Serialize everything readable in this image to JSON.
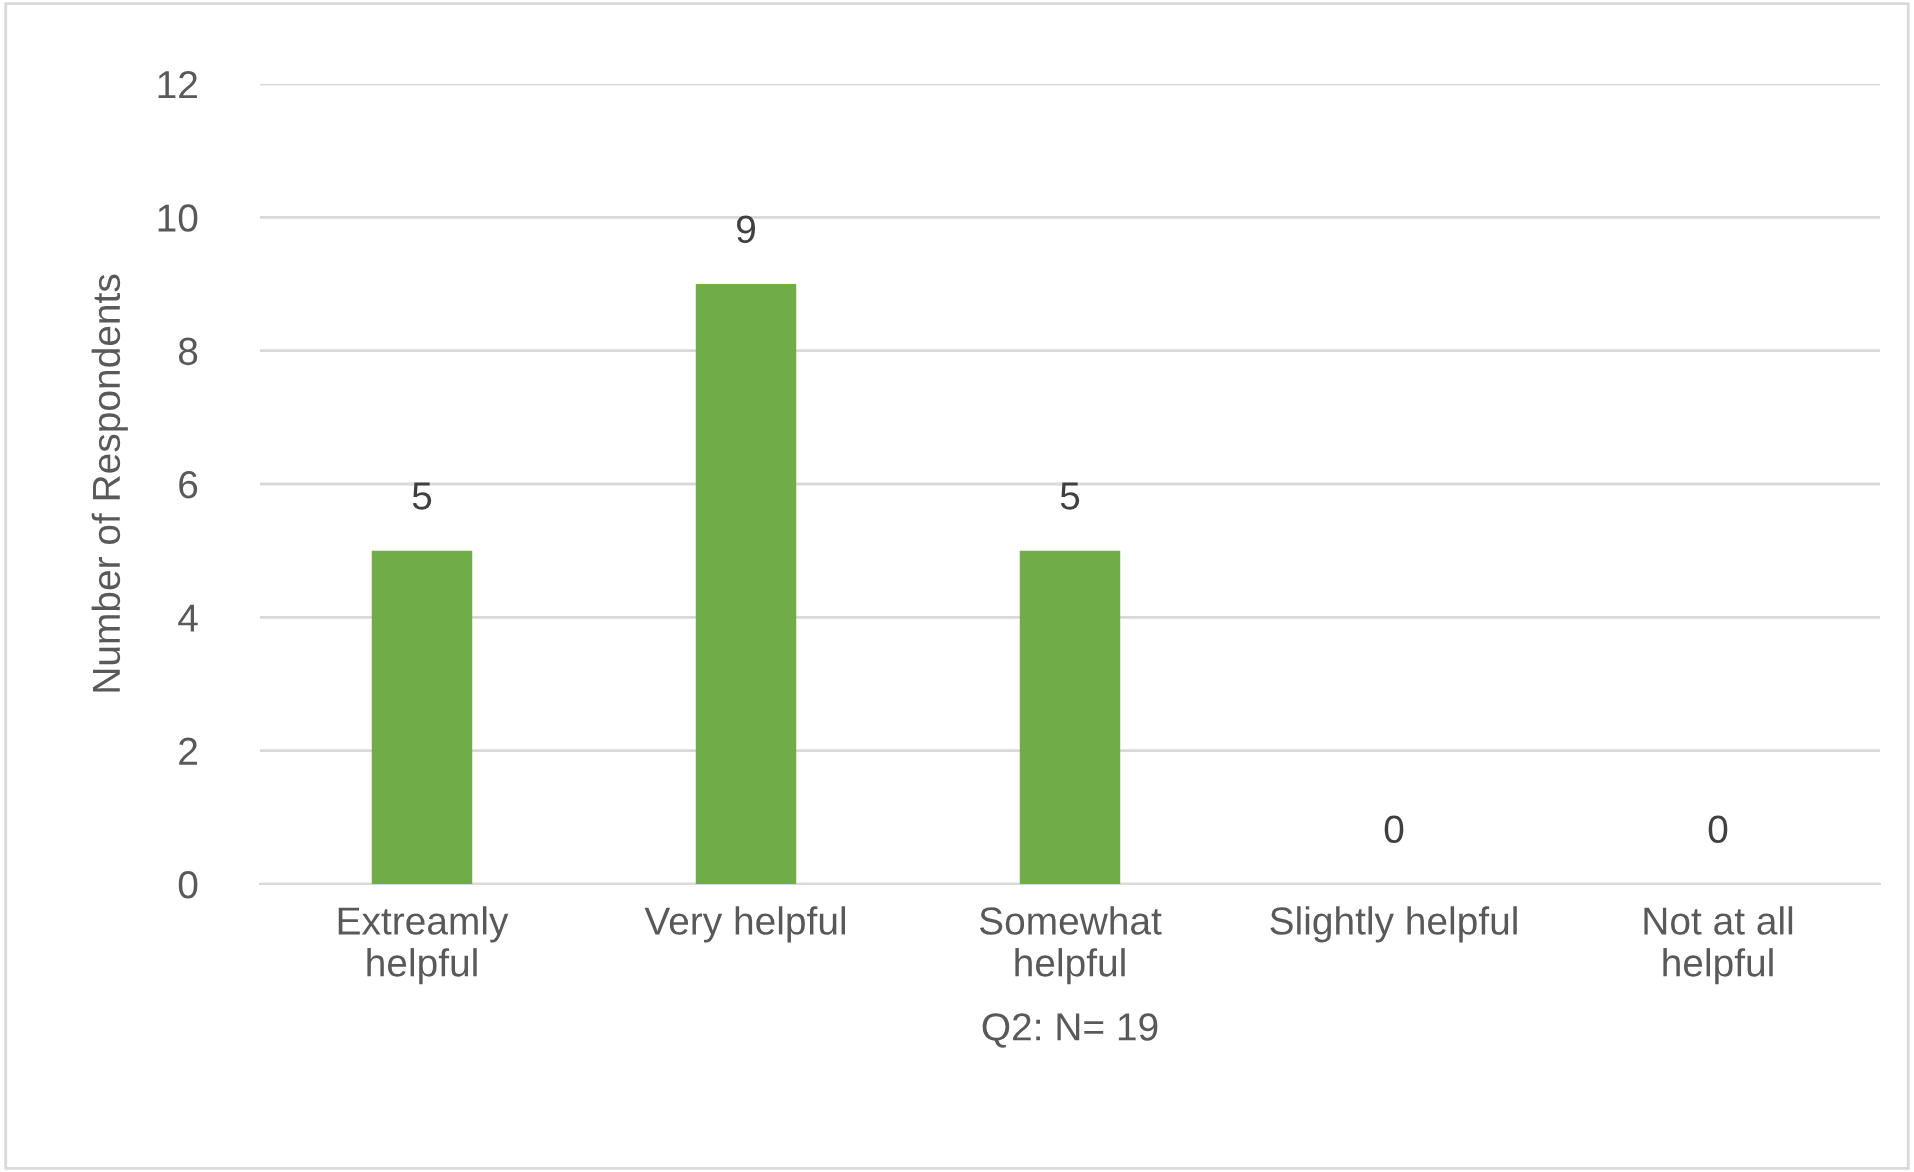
{
  "chart_data": {
    "type": "bar",
    "categories": [
      "Extreamly\nhelpful",
      "Very helpful",
      "Somewhat\nhelpful",
      "Slightly helpful",
      "Not at all\nhelpful"
    ],
    "values": [
      5,
      9,
      5,
      0,
      0
    ],
    "color": "#70ad47",
    "xlabel": "Q2: N= 19",
    "ylabel": "Number of Respondents",
    "ylim": [
      0,
      12
    ],
    "yticks": [
      0,
      2,
      4,
      6,
      8,
      10,
      12
    ],
    "grid": "y",
    "data_labels": true
  }
}
